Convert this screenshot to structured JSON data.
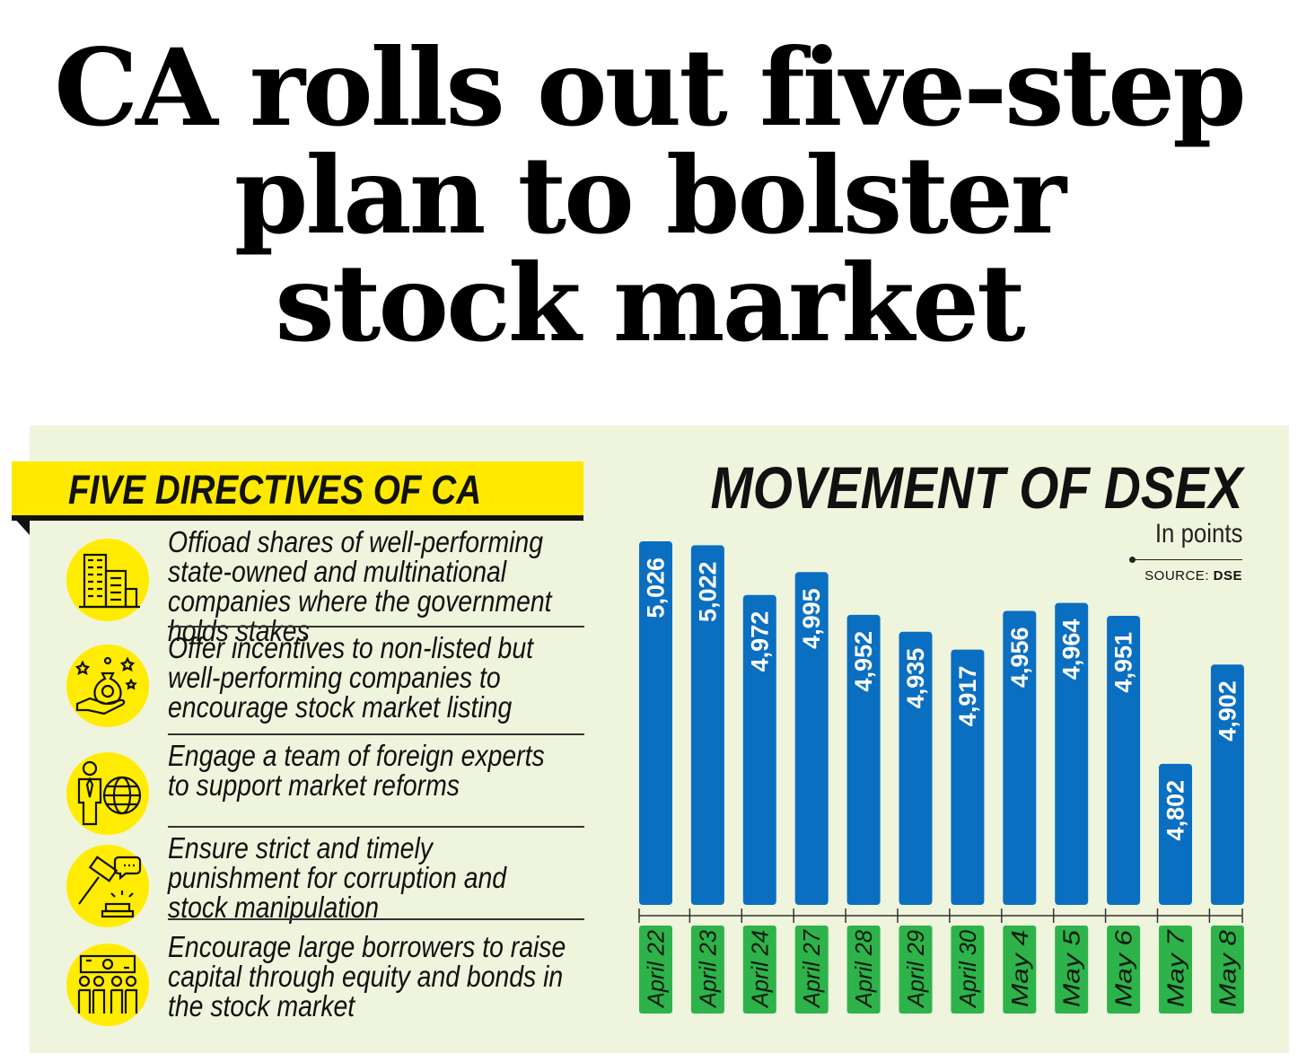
{
  "headline": [
    "CA rolls out five-step",
    "plan to bolster",
    "stock market"
  ],
  "directives": {
    "heading": "FIVE DIRECTIVES OF CA",
    "items": [
      {
        "icon": "office-building-icon",
        "text": "Offioad shares of well-performing state-owned and multinational companies where the government holds stakes"
      },
      {
        "icon": "money-bag-hand-stars-icon",
        "text": "Offer incentives to non-listed but well-performing companies to encourage stock market listing"
      },
      {
        "icon": "businessman-globe-icon",
        "text": "Engage a team of foreign experts to support market reforms"
      },
      {
        "icon": "gavel-icon",
        "text": "Ensure strict and timely punishment for corruption and stock manipulation"
      },
      {
        "icon": "people-money-icon",
        "text": "Encourage large borrowers to raise capital through equity and bonds in the stock market"
      }
    ]
  },
  "chart_data": {
    "type": "bar",
    "title": "MOVEMENT OF DSEX",
    "subtitle": "In points",
    "source_label": "SOURCE:",
    "source": "DSE",
    "categories": [
      "April 22",
      "April 23",
      "April 24",
      "April 27",
      "April 28",
      "April 29",
      "April 30",
      "May 4",
      "May 5",
      "May 6",
      "May 7",
      "May 8"
    ],
    "values": [
      5026,
      5022,
      4972,
      4995,
      4952,
      4935,
      4917,
      4956,
      4964,
      4951,
      4802,
      4902
    ],
    "value_labels": [
      "5,026",
      "5,022",
      "4,972",
      "4,995",
      "4,952",
      "4,935",
      "4,917",
      "4,956",
      "4,964",
      "4,951",
      "4,802",
      "4,902"
    ],
    "ylim": [
      4660,
      5070
    ],
    "grid": false,
    "bar_color": "#0a6fc1",
    "label_color": "#2db34a"
  }
}
